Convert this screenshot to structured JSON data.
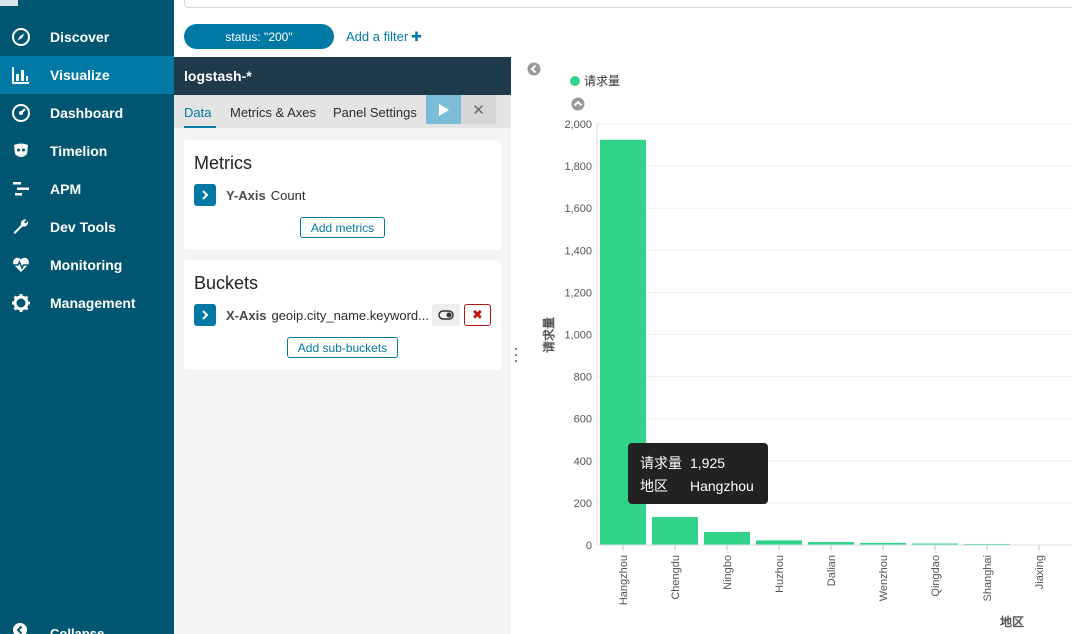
{
  "sidebar": {
    "items": [
      {
        "label": "Discover",
        "icon": "compass-icon",
        "active": false
      },
      {
        "label": "Visualize",
        "icon": "bar-chart-icon",
        "active": true
      },
      {
        "label": "Dashboard",
        "icon": "dashboard-icon",
        "active": false
      },
      {
        "label": "Timelion",
        "icon": "timelion-icon",
        "active": false
      },
      {
        "label": "APM",
        "icon": "apm-icon",
        "active": false
      },
      {
        "label": "Dev Tools",
        "icon": "wrench-icon",
        "active": false
      },
      {
        "label": "Monitoring",
        "icon": "heartbeat-icon",
        "active": false
      },
      {
        "label": "Management",
        "icon": "gear-icon",
        "active": false
      }
    ],
    "collapse_label": "Collapse"
  },
  "filter_bar": {
    "pill_label": "status: \"200\"",
    "add_filter_label": "Add a filter"
  },
  "editor": {
    "index_pattern": "logstash-*",
    "tabs": [
      "Data",
      "Metrics & Axes",
      "Panel Settings"
    ],
    "metrics": {
      "title": "Metrics",
      "axis_label": "Y-Axis",
      "axis_value": "Count",
      "add_button": "Add metrics"
    },
    "buckets": {
      "title": "Buckets",
      "axis_label": "X-Axis",
      "axis_value": "geoip.city_name.keyword...",
      "add_button": "Add sub-buckets"
    }
  },
  "colors": {
    "sidebar_bg": "#005571",
    "accent": "#0079a5",
    "bar": "#31d38a",
    "tooltip_bg": "#222222"
  },
  "chart_data": {
    "type": "bar",
    "categories": [
      "Hangzhou",
      "Chengdu",
      "Ningbo",
      "Huzhou",
      "Dalian",
      "Wenzhou",
      "Qingdao",
      "Shanghai",
      "Jiaxing"
    ],
    "values": [
      1925,
      133,
      62,
      22,
      14,
      10,
      7,
      5,
      2
    ],
    "series_name": "请求量",
    "xlabel": "地区",
    "ylabel": "请求量",
    "ylim": [
      0,
      2000
    ],
    "yticks": [
      0,
      200,
      400,
      600,
      800,
      1000,
      1200,
      1400,
      1600,
      1800,
      2000
    ],
    "ytick_labels": [
      "0",
      "200",
      "400",
      "600",
      "800",
      "1,000",
      "1,200",
      "1,400",
      "1,600",
      "1,800",
      "2,000"
    ],
    "grid": true,
    "legend": "top-left"
  },
  "tooltip": {
    "metric_label": "请求量",
    "metric_value": "1,925",
    "dim_label": "地区",
    "dim_value": "Hangzhou"
  }
}
